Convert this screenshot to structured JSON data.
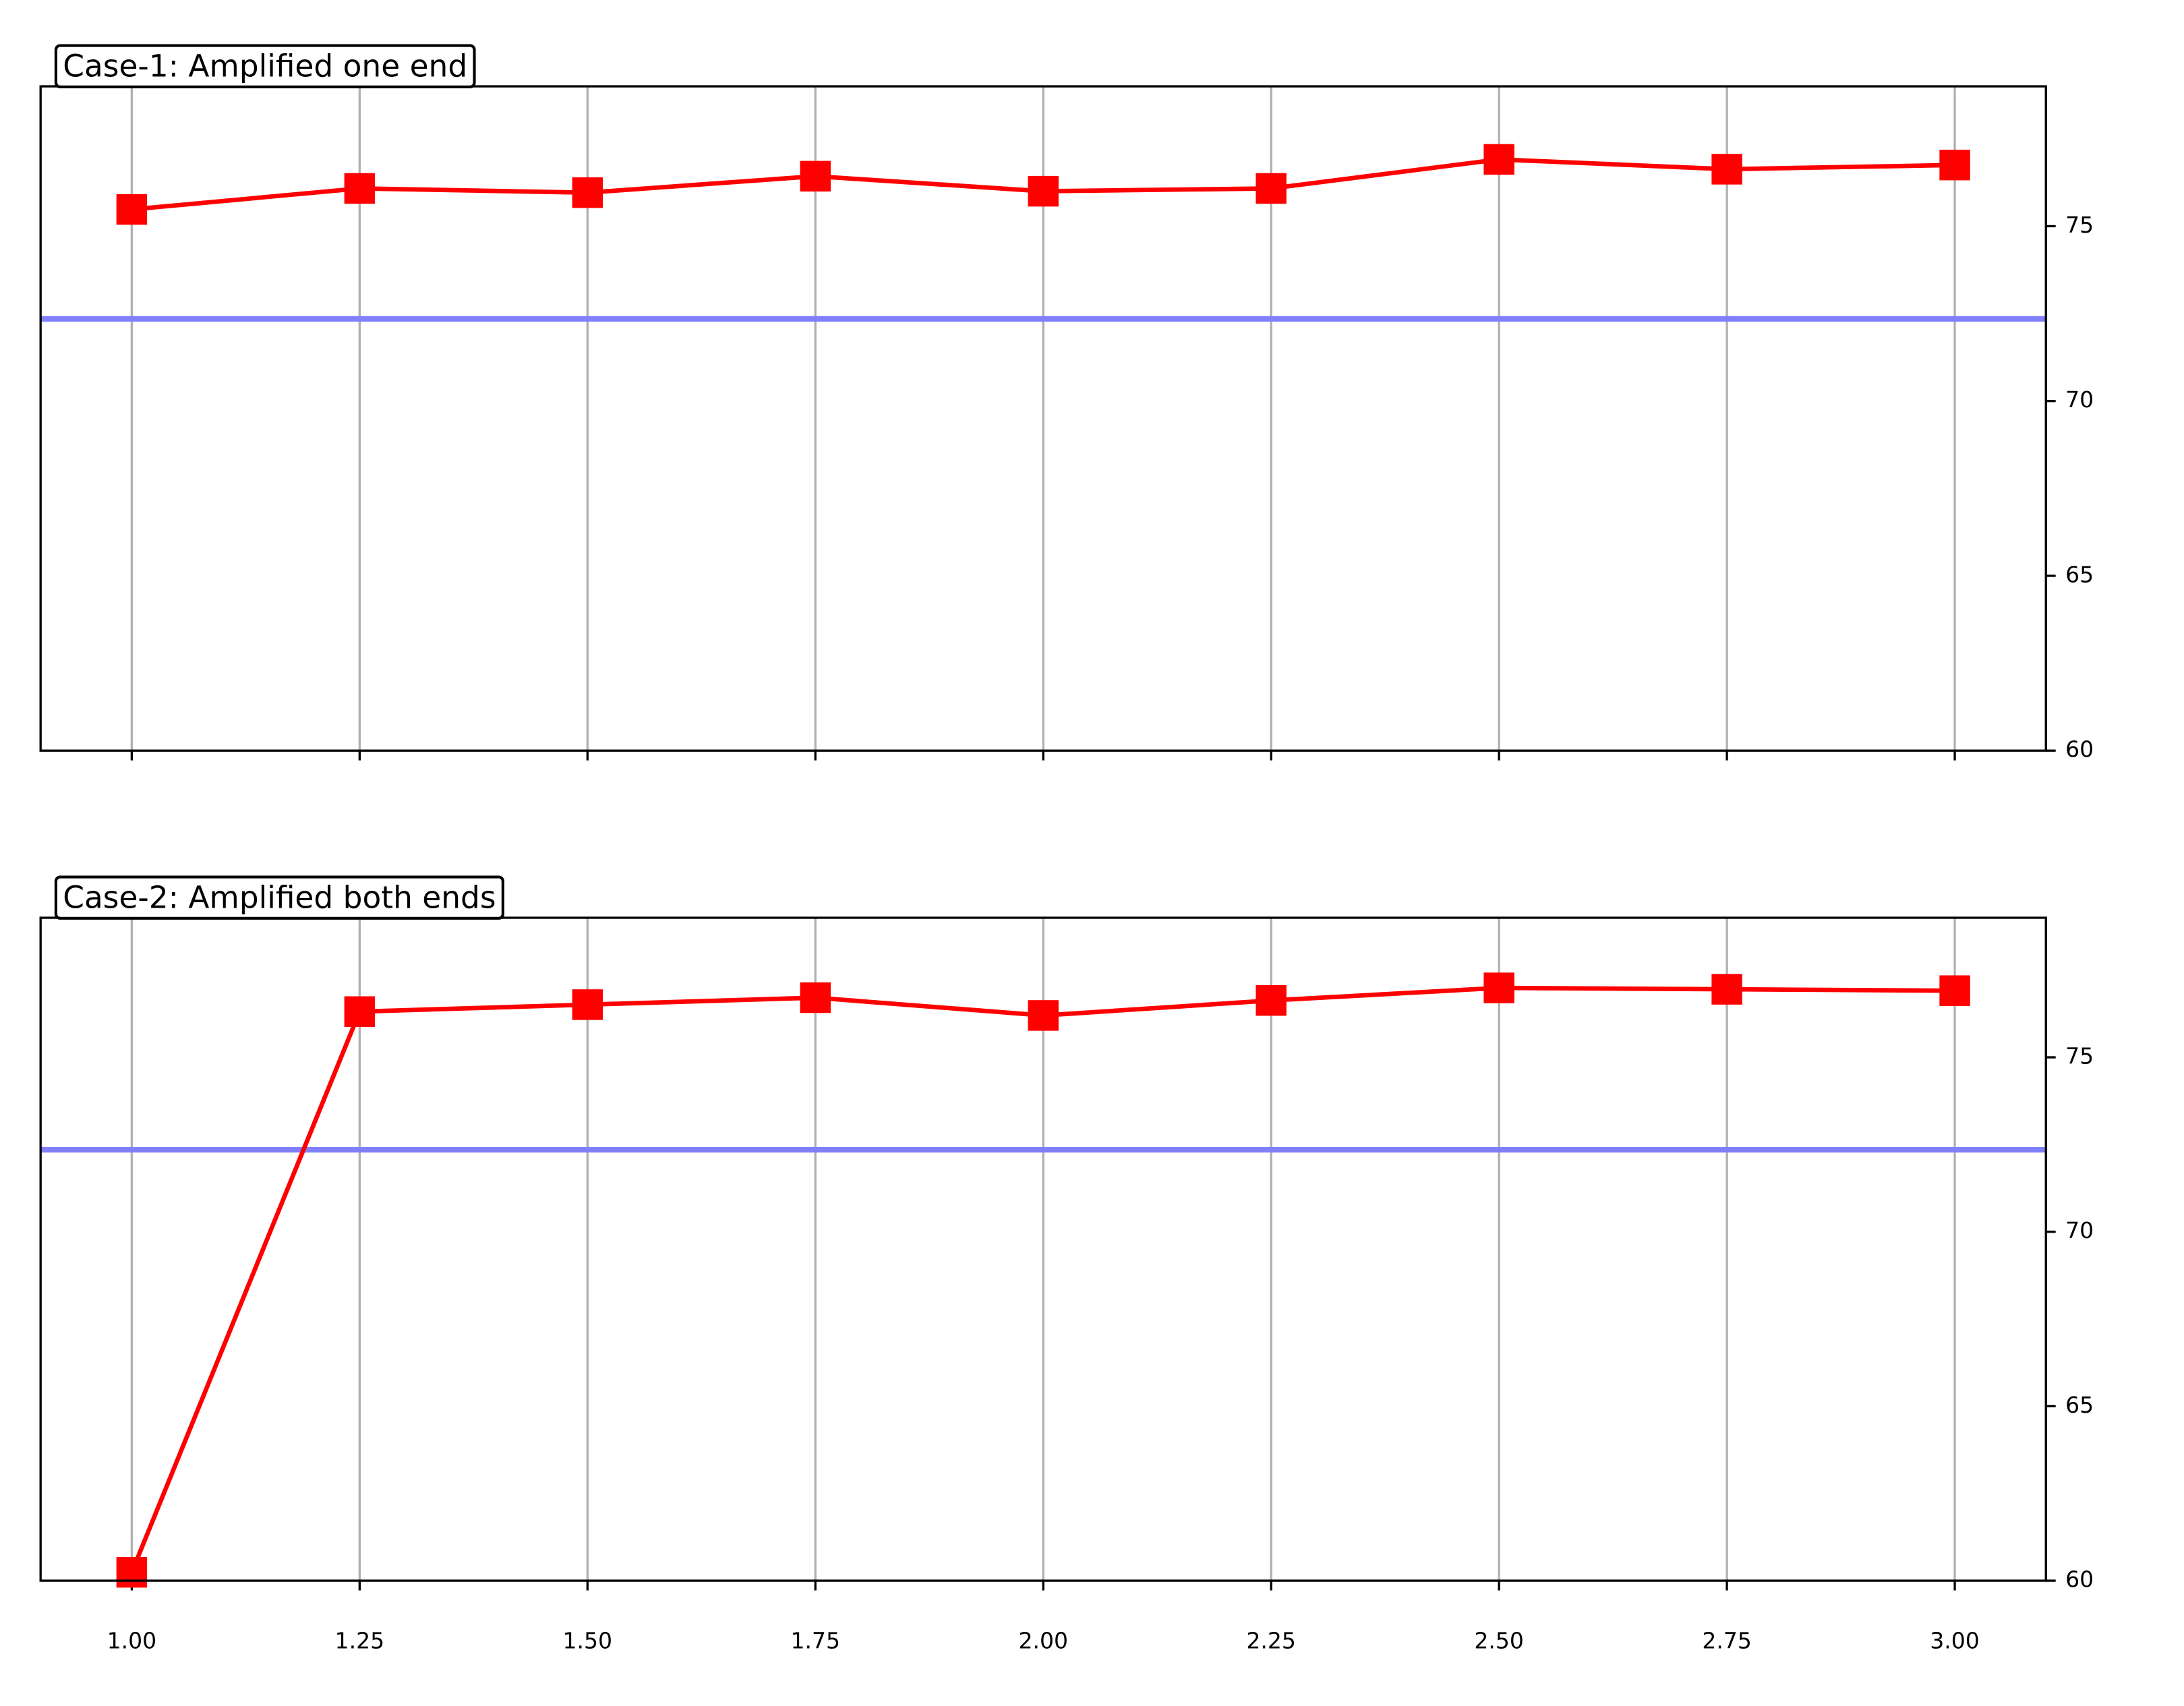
{
  "chart_data": [
    {
      "type": "line",
      "title": "Case-1: Amplified one end",
      "x": [
        1.0,
        1.25,
        1.5,
        1.75,
        2.0,
        2.25,
        2.5,
        2.75,
        3.0
      ],
      "series": [
        {
          "color": "#ff0000",
          "marker": "square",
          "values": [
            75.48,
            76.08,
            75.96,
            76.43,
            76.0,
            76.08,
            76.91,
            76.63,
            76.75
          ]
        }
      ],
      "hline": {
        "value": 72.35,
        "color": "#8080ff"
      },
      "xlim": [
        0.9,
        3.1
      ],
      "ylim": [
        60,
        79
      ],
      "xticks": [
        1.0,
        1.25,
        1.5,
        1.75,
        2.0,
        2.25,
        2.5,
        2.75,
        3.0
      ],
      "yticks": [
        60,
        65,
        70,
        75
      ],
      "yaxis_side": "right",
      "grid": "x"
    },
    {
      "type": "line",
      "title": "Case-2: Amplified both ends",
      "x": [
        1.0,
        1.25,
        1.5,
        1.75,
        2.0,
        2.25,
        2.5,
        2.75,
        3.0
      ],
      "series": [
        {
          "color": "#ff0000",
          "marker": "square",
          "values": [
            60.24,
            76.31,
            76.51,
            76.71,
            76.2,
            76.63,
            76.99,
            76.95,
            76.91
          ]
        }
      ],
      "hline": {
        "value": 72.35,
        "color": "#8080ff"
      },
      "xlim": [
        0.9,
        3.1
      ],
      "ylim": [
        60,
        79
      ],
      "xticks": [
        {
          "value": 1.0,
          "label": "1.00"
        },
        {
          "value": 1.25,
          "label": "1.25"
        },
        {
          "value": 1.5,
          "label": "1.50"
        },
        {
          "value": 1.75,
          "label": "1.75"
        },
        {
          "value": 2.0,
          "label": "2.00"
        },
        {
          "value": 2.25,
          "label": "2.25"
        },
        {
          "value": 2.5,
          "label": "2.50"
        },
        {
          "value": 2.75,
          "label": "2.75"
        },
        {
          "value": 3.0,
          "label": "3.00"
        }
      ],
      "yticks": [
        60,
        65,
        70,
        75
      ],
      "yaxis_side": "right",
      "grid": "x"
    }
  ]
}
